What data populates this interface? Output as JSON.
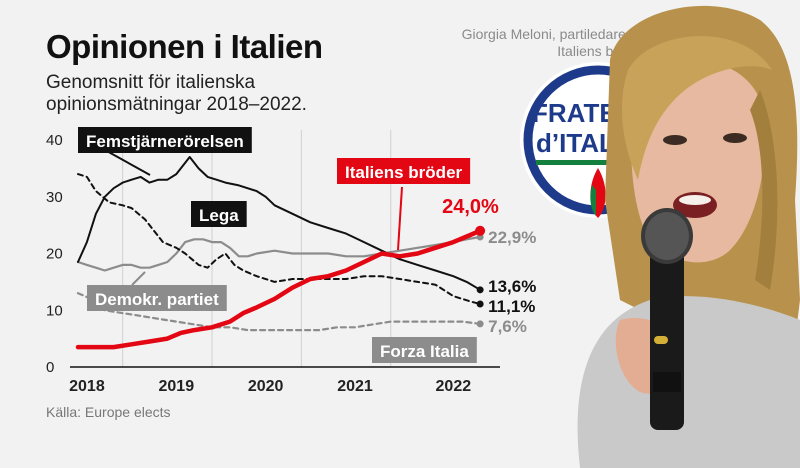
{
  "header": {
    "title": "Opinionen i Italien",
    "subtitle": "Genomsnitt för italienska opinionsmätningar 2018–2022.",
    "photo_caption": "Giorgia Meloni, partiledare för Italiens bröder",
    "source": "Källa: Europe elects"
  },
  "photo": {
    "logo_text_line1": "FRATE",
    "logo_text_line2": "d’ITALI"
  },
  "colors": {
    "fdi": "#e30613",
    "m5s": "#111111",
    "lega": "#111111",
    "pd": "#8c8c8c",
    "fi": "#8c8c8c",
    "background": "#f2f2f2"
  },
  "chart_data": {
    "type": "line",
    "x_ticks": [
      "2018",
      "2019",
      "2020",
      "2021",
      "2022"
    ],
    "x_range": [
      2018.0,
      2022.7
    ],
    "y_ticks": [
      "0",
      "10",
      "20",
      "30",
      "40"
    ],
    "ylim": [
      0,
      40
    ],
    "grid": "vertical",
    "series": [
      {
        "name": "Femstjärnerörelsen",
        "end_label": "11,1%",
        "style": "dashed",
        "color": "#111111",
        "points": [
          [
            2018.0,
            34.0
          ],
          [
            2018.1,
            33.5
          ],
          [
            2018.2,
            31.0
          ],
          [
            2018.35,
            29.0
          ],
          [
            2018.5,
            28.5
          ],
          [
            2018.6,
            28.0
          ],
          [
            2018.75,
            26.0
          ],
          [
            2018.85,
            24.0
          ],
          [
            2018.95,
            22.0
          ],
          [
            2019.1,
            21.0
          ],
          [
            2019.2,
            20.0
          ],
          [
            2019.35,
            18.0
          ],
          [
            2019.45,
            17.5
          ],
          [
            2019.55,
            19.0
          ],
          [
            2019.65,
            20.0
          ],
          [
            2019.75,
            18.0
          ],
          [
            2019.85,
            17.0
          ],
          [
            2020.0,
            16.0
          ],
          [
            2020.2,
            15.0
          ],
          [
            2020.4,
            15.5
          ],
          [
            2020.6,
            15.5
          ],
          [
            2020.8,
            15.5
          ],
          [
            2021.0,
            15.5
          ],
          [
            2021.2,
            16.0
          ],
          [
            2021.4,
            16.0
          ],
          [
            2021.6,
            15.5
          ],
          [
            2021.8,
            15.0
          ],
          [
            2022.0,
            14.5
          ],
          [
            2022.1,
            13.5
          ],
          [
            2022.2,
            12.5
          ],
          [
            2022.3,
            12.0
          ],
          [
            2022.4,
            11.5
          ],
          [
            2022.5,
            11.1
          ]
        ]
      },
      {
        "name": "Lega",
        "end_label": "13,6%",
        "style": "solid",
        "color": "#111111",
        "points": [
          [
            2018.0,
            18.5
          ],
          [
            2018.1,
            22.0
          ],
          [
            2018.2,
            27.0
          ],
          [
            2018.3,
            30.0
          ],
          [
            2018.4,
            31.5
          ],
          [
            2018.5,
            32.5
          ],
          [
            2018.6,
            33.0
          ],
          [
            2018.7,
            33.5
          ],
          [
            2018.8,
            32.5
          ],
          [
            2018.9,
            33.0
          ],
          [
            2019.0,
            33.0
          ],
          [
            2019.1,
            34.0
          ],
          [
            2019.2,
            36.0
          ],
          [
            2019.25,
            37.0
          ],
          [
            2019.35,
            35.0
          ],
          [
            2019.45,
            33.5
          ],
          [
            2019.55,
            33.0
          ],
          [
            2019.65,
            32.5
          ],
          [
            2019.8,
            32.0
          ],
          [
            2020.0,
            31.0
          ],
          [
            2020.1,
            30.0
          ],
          [
            2020.2,
            28.5
          ],
          [
            2020.4,
            27.0
          ],
          [
            2020.6,
            25.5
          ],
          [
            2020.8,
            24.5
          ],
          [
            2021.0,
            23.5
          ],
          [
            2021.2,
            22.0
          ],
          [
            2021.4,
            20.5
          ],
          [
            2021.6,
            19.0
          ],
          [
            2021.8,
            18.0
          ],
          [
            2022.0,
            17.0
          ],
          [
            2022.2,
            16.0
          ],
          [
            2022.35,
            15.0
          ],
          [
            2022.5,
            13.6
          ]
        ]
      },
      {
        "name": "Demokr. partiet",
        "end_label": "22,9%",
        "style": "solid",
        "color": "#8c8c8c",
        "points": [
          [
            2018.0,
            18.5
          ],
          [
            2018.1,
            18.0
          ],
          [
            2018.2,
            17.5
          ],
          [
            2018.3,
            17.0
          ],
          [
            2018.4,
            17.5
          ],
          [
            2018.5,
            18.0
          ],
          [
            2018.6,
            18.0
          ],
          [
            2018.7,
            17.5
          ],
          [
            2018.8,
            17.5
          ],
          [
            2018.9,
            18.0
          ],
          [
            2019.0,
            18.5
          ],
          [
            2019.1,
            20.0
          ],
          [
            2019.2,
            22.0
          ],
          [
            2019.3,
            22.5
          ],
          [
            2019.4,
            22.5
          ],
          [
            2019.5,
            22.0
          ],
          [
            2019.6,
            22.0
          ],
          [
            2019.7,
            21.0
          ],
          [
            2019.8,
            19.5
          ],
          [
            2019.9,
            19.5
          ],
          [
            2020.0,
            20.0
          ],
          [
            2020.2,
            20.5
          ],
          [
            2020.4,
            20.0
          ],
          [
            2020.6,
            20.0
          ],
          [
            2020.8,
            20.0
          ],
          [
            2021.0,
            19.5
          ],
          [
            2021.2,
            19.5
          ],
          [
            2021.4,
            20.0
          ],
          [
            2021.6,
            20.5
          ],
          [
            2021.8,
            21.0
          ],
          [
            2022.0,
            21.5
          ],
          [
            2022.2,
            22.0
          ],
          [
            2022.35,
            22.5
          ],
          [
            2022.5,
            22.9
          ]
        ]
      },
      {
        "name": "Italiens bröder",
        "end_label": "24,0%",
        "style": "solid",
        "color": "#e30613",
        "points": [
          [
            2018.0,
            3.5
          ],
          [
            2018.2,
            3.5
          ],
          [
            2018.4,
            3.5
          ],
          [
            2018.6,
            4.0
          ],
          [
            2018.8,
            4.5
          ],
          [
            2019.0,
            5.0
          ],
          [
            2019.15,
            6.0
          ],
          [
            2019.3,
            6.5
          ],
          [
            2019.5,
            7.0
          ],
          [
            2019.7,
            8.0
          ],
          [
            2019.85,
            9.5
          ],
          [
            2020.0,
            10.5
          ],
          [
            2020.2,
            12.0
          ],
          [
            2020.4,
            14.0
          ],
          [
            2020.6,
            15.5
          ],
          [
            2020.8,
            16.0
          ],
          [
            2021.0,
            17.0
          ],
          [
            2021.2,
            18.5
          ],
          [
            2021.4,
            20.0
          ],
          [
            2021.6,
            19.5
          ],
          [
            2021.8,
            20.0
          ],
          [
            2022.0,
            21.0
          ],
          [
            2022.2,
            22.0
          ],
          [
            2022.35,
            23.0
          ],
          [
            2022.5,
            24.0
          ]
        ]
      },
      {
        "name": "Forza Italia",
        "end_label": "7,6%",
        "style": "dashed",
        "color": "#8c8c8c",
        "points": [
          [
            2018.0,
            13.0
          ],
          [
            2018.15,
            12.0
          ],
          [
            2018.3,
            10.0
          ],
          [
            2018.5,
            9.5
          ],
          [
            2018.7,
            9.0
          ],
          [
            2018.9,
            8.5
          ],
          [
            2019.1,
            8.0
          ],
          [
            2019.3,
            7.5
          ],
          [
            2019.5,
            7.0
          ],
          [
            2019.7,
            7.0
          ],
          [
            2019.9,
            6.5
          ],
          [
            2020.1,
            6.5
          ],
          [
            2020.3,
            6.5
          ],
          [
            2020.5,
            6.5
          ],
          [
            2020.7,
            6.5
          ],
          [
            2020.9,
            7.0
          ],
          [
            2021.1,
            7.0
          ],
          [
            2021.3,
            7.5
          ],
          [
            2021.5,
            8.0
          ],
          [
            2021.7,
            8.0
          ],
          [
            2021.9,
            8.0
          ],
          [
            2022.1,
            8.0
          ],
          [
            2022.3,
            8.0
          ],
          [
            2022.5,
            7.6
          ]
        ]
      }
    ],
    "annotations": [
      {
        "series": "Femstjärnerörelsen",
        "text": "Femstjärnerörelsen"
      },
      {
        "series": "Lega",
        "text": "Lega"
      },
      {
        "series": "Italiens bröder",
        "text": "Italiens bröder"
      },
      {
        "series": "Demokr. partiet",
        "text": "Demokr. partiet"
      },
      {
        "series": "Forza Italia",
        "text": "Forza Italia"
      }
    ]
  }
}
